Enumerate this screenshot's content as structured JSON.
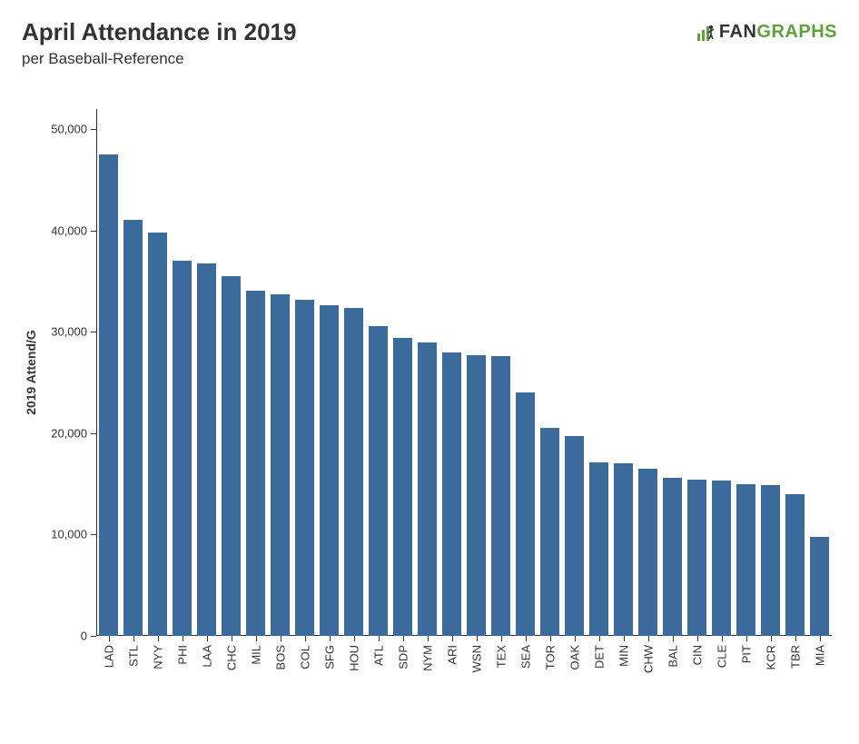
{
  "title": "April Attendance in 2019",
  "subtitle": "per Baseball-Reference",
  "logo": {
    "fan": "FAN",
    "graphs": "GRAPHS"
  },
  "chart": {
    "type": "bar",
    "ylabel": "2019 Attend/G",
    "ylim": [
      0,
      52000
    ],
    "yticks": [
      0,
      10000,
      20000,
      30000,
      40000,
      50000
    ],
    "ytick_labels": [
      "0",
      "10,000",
      "20,000",
      "30,000",
      "40,000",
      "50,000"
    ],
    "categories": [
      "LAD",
      "STL",
      "NYY",
      "PHI",
      "LAA",
      "CHC",
      "MIL",
      "BOS",
      "COL",
      "SFG",
      "HOU",
      "ATL",
      "SDP",
      "NYM",
      "ARI",
      "WSN",
      "TEX",
      "SEA",
      "TOR",
      "OAK",
      "DET",
      "MIN",
      "CHW",
      "BAL",
      "CIN",
      "CLE",
      "PIT",
      "KCR",
      "TBR",
      "MIA"
    ],
    "values": [
      47500,
      41100,
      39800,
      37000,
      36800,
      35500,
      34100,
      33700,
      33200,
      32600,
      32400,
      30600,
      29400,
      29000,
      28000,
      27700,
      27600,
      24000,
      20500,
      19700,
      17100,
      17000,
      16500,
      15600,
      15400,
      15300,
      15000,
      14900,
      14000,
      9800
    ],
    "bar_color": "#3a6b9b",
    "axis_color": "#333333",
    "background_color": "#ffffff",
    "title_fontsize": 26,
    "subtitle_fontsize": 17,
    "label_fontsize": 14,
    "tick_fontsize": 13,
    "bar_width_ratio": 0.78
  }
}
